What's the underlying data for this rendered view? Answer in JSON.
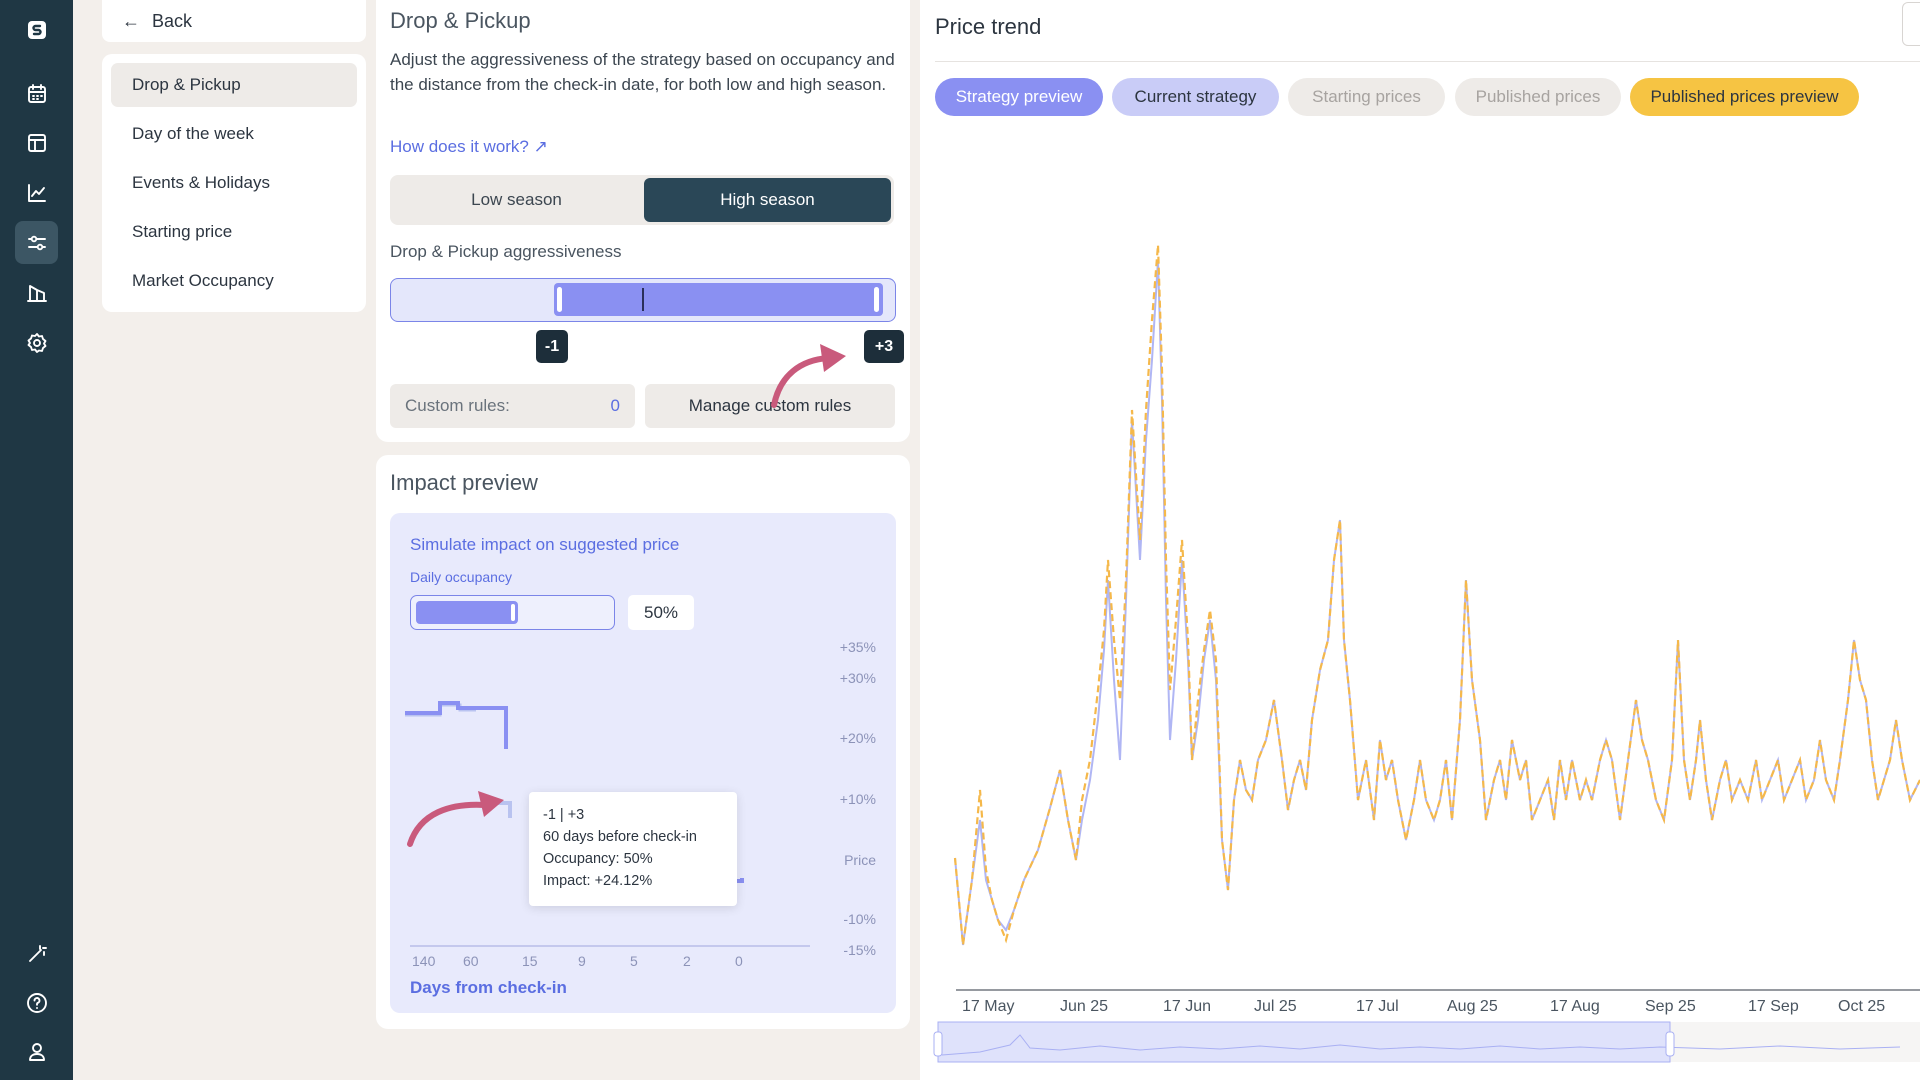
{
  "nav": {
    "back_label": "Back",
    "items": [
      {
        "label": "Drop & Pickup",
        "active": true
      },
      {
        "label": "Day of the week"
      },
      {
        "label": "Events & Holidays"
      },
      {
        "label": "Starting price"
      },
      {
        "label": "Market Occupancy"
      }
    ]
  },
  "rail_icons": [
    "logo-icon",
    "calendar-icon",
    "layout-icon",
    "chart-line-icon",
    "sliders-icon",
    "buildings-icon",
    "gear-icon",
    "magic-wand-icon",
    "help-icon",
    "user-icon"
  ],
  "strategy": {
    "title": "Drop & Pickup",
    "description": "Adjust the aggressiveness of the strategy based on occupancy and the distance from the check-in date, for both low and high season.",
    "how_link": "How does it work? ↗",
    "season": {
      "low": "Low season",
      "high": "High season",
      "selected": "High season"
    },
    "aggressiveness_label": "Drop & Pickup aggressiveness",
    "range": {
      "min_label": "-1",
      "max_label": "+3"
    },
    "custom_rules_label": "Custom rules:",
    "custom_rules_count": "0",
    "manage_label": "Manage custom rules"
  },
  "impact": {
    "title": "Impact preview",
    "simulate_label": "Simulate impact on suggested price",
    "occupancy_label": "Daily occupancy",
    "occupancy_value": "50%",
    "occupancy_fraction": 0.5,
    "y_labels": [
      "+35%",
      "+30%",
      "+20%",
      "+10%",
      "Price",
      "-10%",
      "-15%"
    ],
    "x_labels": [
      "140",
      "60",
      "15",
      "9",
      "5",
      "2",
      "0"
    ],
    "x_title": "Days from check-in",
    "tooltip": {
      "line1": "-1 | +3",
      "line2": "60 days before check-in",
      "line3": "Occupancy: 50%",
      "line4": "Impact: +24.12%"
    }
  },
  "price_trend": {
    "title": "Price trend",
    "pills": [
      {
        "label": "Strategy preview",
        "bg": "#8a90f2",
        "fg": "#ffffff"
      },
      {
        "label": "Current strategy",
        "bg": "#c9ccf7",
        "fg": "#2c3540"
      },
      {
        "label": "Starting prices",
        "bg": "#eeebe8",
        "fg": "#a7a3a0"
      },
      {
        "label": "Published prices",
        "bg": "#eeebe8",
        "fg": "#a7a3a0"
      },
      {
        "label": "Published prices preview",
        "bg": "#f6c443",
        "fg": "#2c3540"
      }
    ],
    "x_ticks": [
      "17 May",
      "Jun 25",
      "17 Jun",
      "Jul 25",
      "17 Jul",
      "Aug 25",
      "17 Aug",
      "Sep 25",
      "17 Sep",
      "Oct 25"
    ]
  },
  "colors": {
    "accent": "#5b6ee1",
    "rail": "#1f3744",
    "line_orange": "#f5b84a",
    "line_purple": "#9ba2f3",
    "annotation_arrow": "#c95a7c"
  }
}
